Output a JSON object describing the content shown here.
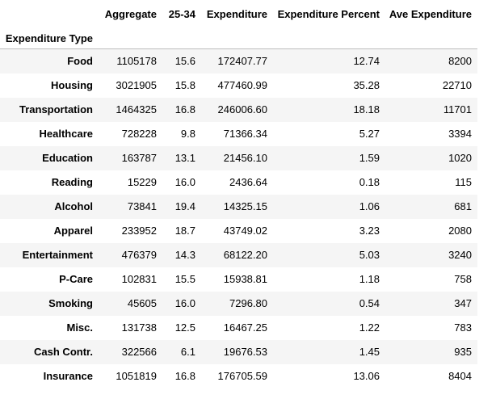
{
  "table": {
    "index_name": "Expenditure Type",
    "columns": [
      "Aggregate",
      "25-34",
      "Expenditure",
      "Expenditure Percent",
      "Ave Expenditure"
    ],
    "rows": [
      {
        "label": "Food",
        "values": [
          "1105178",
          "15.6",
          "172407.77",
          "12.74",
          "8200"
        ]
      },
      {
        "label": "Housing",
        "values": [
          "3021905",
          "15.8",
          "477460.99",
          "35.28",
          "22710"
        ]
      },
      {
        "label": "Transportation",
        "values": [
          "1464325",
          "16.8",
          "246006.60",
          "18.18",
          "11701"
        ]
      },
      {
        "label": "Healthcare",
        "values": [
          "728228",
          "9.8",
          "71366.34",
          "5.27",
          "3394"
        ]
      },
      {
        "label": "Education",
        "values": [
          "163787",
          "13.1",
          "21456.10",
          "1.59",
          "1020"
        ]
      },
      {
        "label": "Reading",
        "values": [
          "15229",
          "16.0",
          "2436.64",
          "0.18",
          "115"
        ]
      },
      {
        "label": "Alcohol",
        "values": [
          "73841",
          "19.4",
          "14325.15",
          "1.06",
          "681"
        ]
      },
      {
        "label": "Apparel",
        "values": [
          "233952",
          "18.7",
          "43749.02",
          "3.23",
          "2080"
        ]
      },
      {
        "label": "Entertainment",
        "values": [
          "476379",
          "14.3",
          "68122.20",
          "5.03",
          "3240"
        ]
      },
      {
        "label": "P-Care",
        "values": [
          "102831",
          "15.5",
          "15938.81",
          "1.18",
          "758"
        ]
      },
      {
        "label": "Smoking",
        "values": [
          "45605",
          "16.0",
          "7296.80",
          "0.54",
          "347"
        ]
      },
      {
        "label": "Misc.",
        "values": [
          "131738",
          "12.5",
          "16467.25",
          "1.22",
          "783"
        ]
      },
      {
        "label": "Cash Contr.",
        "values": [
          "322566",
          "6.1",
          "19676.53",
          "1.45",
          "935"
        ]
      },
      {
        "label": "Insurance",
        "values": [
          "1051819",
          "16.8",
          "176705.59",
          "13.06",
          "8404"
        ]
      }
    ]
  }
}
